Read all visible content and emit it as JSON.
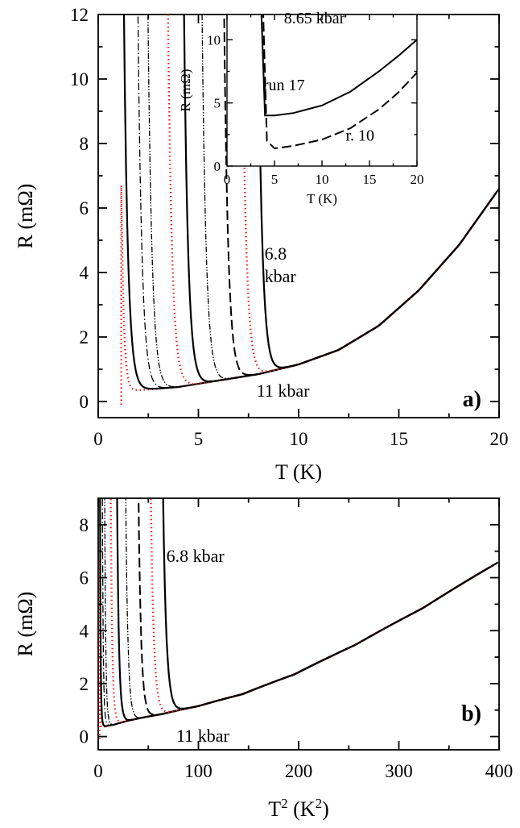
{
  "colors": {
    "black": "#000000",
    "red": "#e8231e",
    "background": "#ffffff"
  },
  "chart_data": [
    {
      "panel": "a",
      "type": "line",
      "panel_label": "a)",
      "xlabel": "T (K)",
      "ylabel": "R (mΩ)",
      "xlim": [
        0,
        20
      ],
      "ylim": [
        -0.5,
        12
      ],
      "xticks": [
        0,
        5,
        10,
        15,
        20
      ],
      "yticks": [
        0,
        2,
        4,
        6,
        8,
        10,
        12
      ],
      "grid": false,
      "annotations": [
        {
          "text": "6.8",
          "x": 8.3,
          "y": 4.4
        },
        {
          "text": "kbar",
          "x": 8.3,
          "y": 3.7
        },
        {
          "text": "11 kbar",
          "x": 7.9,
          "y": 0.15
        }
      ],
      "series": [
        {
          "Tc": 1.15,
          "floor": 0.08,
          "style": "red-dots",
          "peak": 6.7
        },
        {
          "Tc": 1.25,
          "floor": 0.1,
          "style": "solid"
        },
        {
          "Tc": 1.95,
          "floor": 0.28,
          "style": "dash-dot"
        },
        {
          "Tc": 2.45,
          "floor": 0.42,
          "style": "dash-dot-dot"
        },
        {
          "Tc": 3.45,
          "floor": 0.52,
          "style": "red-dots"
        },
        {
          "Tc": 4.25,
          "floor": 0.58,
          "style": "solid"
        },
        {
          "Tc": 5.15,
          "floor": 0.66,
          "style": "dash-dot-dot"
        },
        {
          "Tc": 6.25,
          "floor": 0.75,
          "style": "long-dash"
        },
        {
          "Tc": 7.15,
          "floor": 0.85,
          "style": "red-dots"
        },
        {
          "Tc": 7.95,
          "floor": 0.95,
          "style": "solid"
        }
      ],
      "normal_state": {
        "T": [
          0,
          4,
          8,
          10,
          12,
          14,
          16,
          18,
          20
        ],
        "R": [
          0.25,
          0.45,
          0.85,
          1.15,
          1.6,
          2.35,
          3.45,
          4.85,
          6.6
        ]
      },
      "inset": {
        "type": "line",
        "xlabel": "T (K)",
        "ylabel": "R (mΩ)",
        "xlim": [
          0,
          20
        ],
        "ylim": [
          0,
          12
        ],
        "xticks": [
          0,
          5,
          10,
          15,
          20
        ],
        "yticks": [
          0,
          5,
          10
        ],
        "annotations": [
          {
            "text": "8.65 kbar",
            "x": 6.0,
            "y": 11.3
          },
          {
            "text": "run 17",
            "x": 3.8,
            "y": 6.0
          },
          {
            "text": "r. 10",
            "x": 12.5,
            "y": 2.0
          }
        ],
        "series": [
          {
            "name": "run 17",
            "style": "solid",
            "T": [
              3.6,
              4.0,
              5,
              7,
              10,
              13,
              16,
              18,
              20
            ],
            "R": [
              12.5,
              4.0,
              4.0,
              4.2,
              4.8,
              5.9,
              7.5,
              8.7,
              10.0
            ]
          },
          {
            "name": "r. 10",
            "style": "long-dash",
            "T": [
              3.8,
              4.2,
              5,
              7,
              10,
              13,
              16,
              18,
              20
            ],
            "R": [
              12.5,
              2.0,
              1.4,
              1.6,
              2.1,
              3.0,
              4.5,
              5.8,
              7.4
            ]
          }
        ]
      }
    },
    {
      "panel": "b",
      "type": "line",
      "panel_label": "b)",
      "xlabel": "T",
      "xlabel_sup": "2",
      "xlabel_unit": " (K",
      "xlabel_unit_sup": "2",
      "xlabel_close": ")",
      "ylabel": "R (mΩ)",
      "xlim": [
        0,
        400
      ],
      "ylim": [
        -0.5,
        9
      ],
      "xticks": [
        0,
        100,
        200,
        300,
        400
      ],
      "yticks": [
        0,
        2,
        4,
        6,
        8
      ],
      "grid": false,
      "annotations": [
        {
          "text": "6.8 kbar",
          "x": 68,
          "y": 6.6
        },
        {
          "text": "11 kbar",
          "x": 78,
          "y": -0.2
        }
      ]
    }
  ]
}
